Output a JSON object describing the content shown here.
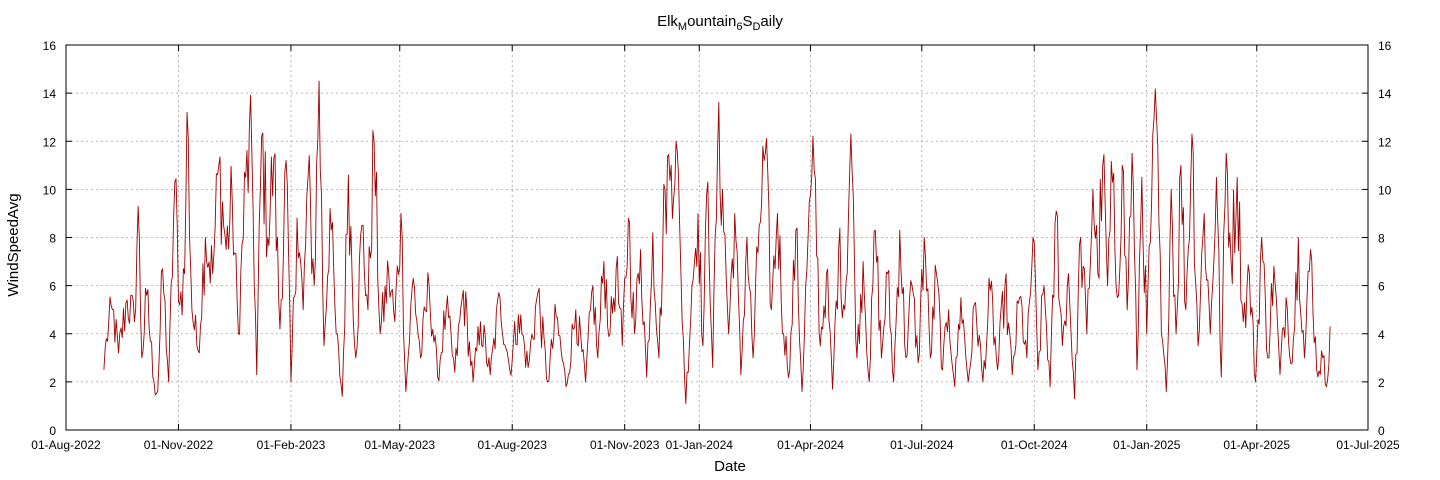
{
  "chart_data": {
    "type": "line",
    "title": "Elk_Mountain_6S_Daily",
    "title_parts": {
      "p1": "Elk",
      "s1": "M",
      "p2": "ountain",
      "s2": "6",
      "p3": "S",
      "s3": "D",
      "p4": "aily"
    },
    "xlabel": "Date",
    "ylabel": "WindSpeedAvg",
    "xlim": [
      "2022-08-01",
      "2025-07-01"
    ],
    "ylim": [
      0,
      16
    ],
    "x_ticks": [
      "01-Aug-2022",
      "01-Nov-2022",
      "01-Feb-2023",
      "01-May-2023",
      "01-Aug-2023",
      "01-Nov-2023",
      "01-Jan-2024",
      "01-Apr-2024",
      "01-Jul-2024",
      "01-Oct-2024",
      "01-Jan-2025",
      "01-Apr-2025",
      "01-Jul-2025"
    ],
    "y_ticks": [
      "0",
      "2",
      "4",
      "6",
      "8",
      "10",
      "12",
      "14",
      "16"
    ],
    "grid": true,
    "line_color": "#a00000",
    "series": [
      {
        "start_date": "2022-09-01",
        "end_date": "2025-05-31",
        "anchors": [
          [
            "2022-09-01",
            2.5
          ],
          [
            "2022-09-03",
            3.8
          ],
          [
            "2022-09-08",
            5.0
          ],
          [
            "2022-09-13",
            3.2
          ],
          [
            "2022-09-20",
            5.4
          ],
          [
            "2022-09-26",
            4.5
          ],
          [
            "2022-09-29",
            9.3
          ],
          [
            "2022-10-02",
            3.0
          ],
          [
            "2022-10-06",
            5.6
          ],
          [
            "2022-10-12",
            2.0
          ],
          [
            "2022-10-15",
            1.6
          ],
          [
            "2022-10-19",
            6.7
          ],
          [
            "2022-10-24",
            2.0
          ],
          [
            "2022-10-29",
            10.3
          ],
          [
            "2022-11-02",
            5.2
          ],
          [
            "2022-11-06",
            6.5
          ],
          [
            "2022-11-08",
            13.2
          ],
          [
            "2022-11-12",
            5.0
          ],
          [
            "2022-11-17",
            3.3
          ],
          [
            "2022-11-23",
            8.0
          ],
          [
            "2022-11-29",
            6.5
          ],
          [
            "2022-12-04",
            11.0
          ],
          [
            "2022-12-10",
            7.5
          ],
          [
            "2022-12-15",
            9.5
          ],
          [
            "2022-12-20",
            4.0
          ],
          [
            "2022-12-26",
            10.5
          ],
          [
            "2022-12-31",
            11.6
          ],
          [
            "2023-01-04",
            2.3
          ],
          [
            "2023-01-08",
            12.2
          ],
          [
            "2023-01-13",
            8.0
          ],
          [
            "2023-01-18",
            11.3
          ],
          [
            "2023-01-23",
            4.2
          ],
          [
            "2023-01-28",
            11.2
          ],
          [
            "2023-02-01",
            2.0
          ],
          [
            "2023-02-06",
            8.8
          ],
          [
            "2023-02-11",
            5.0
          ],
          [
            "2023-02-15",
            10.5
          ],
          [
            "2023-02-20",
            6.0
          ],
          [
            "2023-02-24",
            14.5
          ],
          [
            "2023-02-28",
            3.5
          ],
          [
            "2023-03-05",
            9.2
          ],
          [
            "2023-03-10",
            4.0
          ],
          [
            "2023-03-15",
            1.4
          ],
          [
            "2023-03-20",
            10.6
          ],
          [
            "2023-03-26",
            3.0
          ],
          [
            "2023-03-31",
            8.5
          ],
          [
            "2023-04-05",
            5.0
          ],
          [
            "2023-04-10",
            12.0
          ],
          [
            "2023-04-15",
            4.0
          ],
          [
            "2023-04-22",
            6.5
          ],
          [
            "2023-04-27",
            4.5
          ],
          [
            "2023-05-02",
            9.0
          ],
          [
            "2023-05-06",
            1.6
          ],
          [
            "2023-05-12",
            6.3
          ],
          [
            "2023-05-18",
            3.0
          ],
          [
            "2023-05-25",
            6.0
          ],
          [
            "2023-06-01",
            2.2
          ],
          [
            "2023-06-08",
            5.0
          ],
          [
            "2023-06-15",
            2.4
          ],
          [
            "2023-06-22",
            5.8
          ],
          [
            "2023-06-30",
            2.0
          ],
          [
            "2023-07-06",
            4.5
          ],
          [
            "2023-07-14",
            2.3
          ],
          [
            "2023-07-22",
            5.5
          ],
          [
            "2023-07-30",
            2.5
          ],
          [
            "2023-08-06",
            4.8
          ],
          [
            "2023-08-14",
            2.6
          ],
          [
            "2023-08-22",
            5.7
          ],
          [
            "2023-08-30",
            2.0
          ],
          [
            "2023-09-06",
            4.7
          ],
          [
            "2023-09-14",
            1.8
          ],
          [
            "2023-09-22",
            5.0
          ],
          [
            "2023-09-30",
            2.0
          ],
          [
            "2023-10-06",
            6.0
          ],
          [
            "2023-10-10",
            3.0
          ],
          [
            "2023-10-15",
            7.0
          ],
          [
            "2023-10-20",
            4.0
          ],
          [
            "2023-10-25",
            6.7
          ],
          [
            "2023-10-30",
            3.5
          ],
          [
            "2023-11-04",
            8.8
          ],
          [
            "2023-11-09",
            4.0
          ],
          [
            "2023-11-14",
            7.5
          ],
          [
            "2023-11-19",
            2.2
          ],
          [
            "2023-11-24",
            8.2
          ],
          [
            "2023-11-29",
            3.0
          ],
          [
            "2023-12-04",
            10.0
          ],
          [
            "2023-12-09",
            11.0
          ],
          [
            "2023-12-13",
            12.0
          ],
          [
            "2023-12-17",
            6.5
          ],
          [
            "2023-12-21",
            1.1
          ],
          [
            "2023-12-26",
            6.0
          ],
          [
            "2023-12-31",
            9.0
          ],
          [
            "2024-01-04",
            3.5
          ],
          [
            "2024-01-08",
            10.3
          ],
          [
            "2024-01-12",
            2.6
          ],
          [
            "2024-01-16",
            11.7
          ],
          [
            "2024-01-20",
            10.0
          ],
          [
            "2024-01-25",
            4.0
          ],
          [
            "2024-01-30",
            9.0
          ],
          [
            "2024-02-04",
            2.3
          ],
          [
            "2024-02-09",
            8.0
          ],
          [
            "2024-02-14",
            3.0
          ],
          [
            "2024-02-19",
            8.5
          ],
          [
            "2024-02-24",
            11.5
          ],
          [
            "2024-02-29",
            5.0
          ],
          [
            "2024-03-05",
            9.0
          ],
          [
            "2024-03-10",
            4.0
          ],
          [
            "2024-03-15",
            2.5
          ],
          [
            "2024-03-20",
            8.3
          ],
          [
            "2024-03-25",
            1.6
          ],
          [
            "2024-03-30",
            8.0
          ],
          [
            "2024-04-04",
            10.8
          ],
          [
            "2024-04-09",
            3.5
          ],
          [
            "2024-04-14",
            6.5
          ],
          [
            "2024-04-19",
            1.7
          ],
          [
            "2024-04-24",
            7.5
          ],
          [
            "2024-04-29",
            5.0
          ],
          [
            "2024-05-04",
            12.3
          ],
          [
            "2024-05-09",
            3.0
          ],
          [
            "2024-05-14",
            7.0
          ],
          [
            "2024-05-19",
            2.0
          ],
          [
            "2024-05-24",
            8.3
          ],
          [
            "2024-05-29",
            3.0
          ],
          [
            "2024-06-03",
            6.5
          ],
          [
            "2024-06-08",
            2.0
          ],
          [
            "2024-06-13",
            8.3
          ],
          [
            "2024-06-18",
            3.0
          ],
          [
            "2024-06-23",
            6.0
          ],
          [
            "2024-06-28",
            2.8
          ],
          [
            "2024-07-03",
            8.0
          ],
          [
            "2024-07-08",
            3.0
          ],
          [
            "2024-07-13",
            6.5
          ],
          [
            "2024-07-18",
            2.5
          ],
          [
            "2024-07-23",
            5.0
          ],
          [
            "2024-07-28",
            1.8
          ],
          [
            "2024-08-02",
            5.5
          ],
          [
            "2024-08-08",
            2.0
          ],
          [
            "2024-08-14",
            5.3
          ],
          [
            "2024-08-20",
            2.0
          ],
          [
            "2024-08-26",
            5.8
          ],
          [
            "2024-09-01",
            2.5
          ],
          [
            "2024-09-07",
            6.0
          ],
          [
            "2024-09-13",
            2.3
          ],
          [
            "2024-09-19",
            5.5
          ],
          [
            "2024-09-25",
            3.0
          ],
          [
            "2024-09-30",
            8.0
          ],
          [
            "2024-10-04",
            2.5
          ],
          [
            "2024-10-09",
            6.0
          ],
          [
            "2024-10-14",
            1.8
          ],
          [
            "2024-10-19",
            9.1
          ],
          [
            "2024-10-24",
            3.5
          ],
          [
            "2024-10-29",
            6.5
          ],
          [
            "2024-11-03",
            1.3
          ],
          [
            "2024-11-08",
            8.0
          ],
          [
            "2024-11-13",
            4.0
          ],
          [
            "2024-11-18",
            10.0
          ],
          [
            "2024-11-22",
            6.5
          ],
          [
            "2024-11-26",
            11.0
          ],
          [
            "2024-11-30",
            6.0
          ],
          [
            "2024-12-04",
            10.3
          ],
          [
            "2024-12-08",
            5.5
          ],
          [
            "2024-12-12",
            11.0
          ],
          [
            "2024-12-16",
            5.0
          ],
          [
            "2024-12-20",
            11.5
          ],
          [
            "2024-12-24",
            2.5
          ],
          [
            "2024-12-28",
            10.5
          ],
          [
            "2025-01-01",
            4.0
          ],
          [
            "2025-01-05",
            9.5
          ],
          [
            "2025-01-09",
            13.0
          ],
          [
            "2025-01-13",
            4.0
          ],
          [
            "2025-01-17",
            1.6
          ],
          [
            "2025-01-21",
            10.0
          ],
          [
            "2025-01-25",
            4.0
          ],
          [
            "2025-01-29",
            11.0
          ],
          [
            "2025-02-02",
            5.0
          ],
          [
            "2025-02-07",
            12.3
          ],
          [
            "2025-02-12",
            3.5
          ],
          [
            "2025-02-17",
            9.0
          ],
          [
            "2025-02-22",
            4.0
          ],
          [
            "2025-02-27",
            10.5
          ],
          [
            "2025-03-03",
            2.2
          ],
          [
            "2025-03-07",
            11.5
          ],
          [
            "2025-03-11",
            7.0
          ],
          [
            "2025-03-16",
            10.5
          ],
          [
            "2025-03-21",
            4.5
          ],
          [
            "2025-03-26",
            6.5
          ],
          [
            "2025-03-31",
            2.0
          ],
          [
            "2025-04-05",
            8.0
          ],
          [
            "2025-04-10",
            3.0
          ],
          [
            "2025-04-15",
            6.8
          ],
          [
            "2025-04-20",
            2.3
          ],
          [
            "2025-04-25",
            5.5
          ],
          [
            "2025-04-30",
            2.8
          ],
          [
            "2025-05-05",
            8.0
          ],
          [
            "2025-05-10",
            3.0
          ],
          [
            "2025-05-15",
            7.5
          ],
          [
            "2025-05-20",
            2.5
          ],
          [
            "2025-05-25",
            3.0
          ],
          [
            "2025-05-28",
            1.8
          ],
          [
            "2025-05-31",
            4.3
          ]
        ]
      }
    ]
  }
}
